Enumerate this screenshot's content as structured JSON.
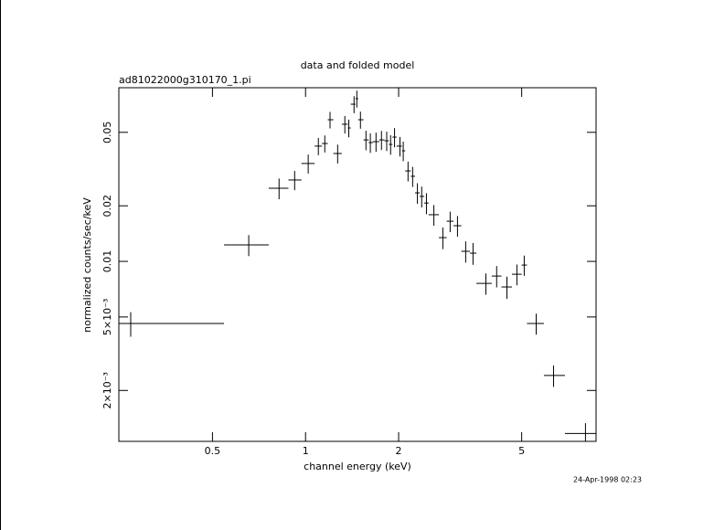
{
  "chart_data": {
    "type": "errorbar",
    "title": "data and folded model",
    "subtitle": "ad81022000g310170_1.pi",
    "x_label": "channel energy (keV)",
    "y_label": "normalized counts/sec/keV",
    "annotation": "24-Apr-1998 02:23",
    "log_x": true,
    "log_y": true,
    "color": "#000000",
    "xlim": [
      0.249,
      8.7
    ],
    "ylim": [
      0.00106,
      0.0872
    ],
    "xticks": [
      0.5,
      1,
      2,
      5
    ],
    "yticks": [
      {
        "value": 0.002,
        "label": "2×10⁻³"
      },
      {
        "value": 0.005,
        "label": "5×10⁻³"
      },
      0.01,
      0.02,
      0.05
    ],
    "x": [
      0.272,
      0.655,
      0.821,
      0.922,
      1.02,
      1.1,
      1.154,
      1.2,
      1.27,
      1.34,
      1.38,
      1.435,
      1.465,
      1.505,
      1.568,
      1.62,
      1.69,
      1.76,
      1.83,
      1.884,
      1.94,
      2.02,
      2.07,
      2.145,
      2.22,
      2.3,
      2.375,
      2.46,
      2.6,
      2.78,
      2.935,
      3.1,
      3.295,
      3.48,
      3.83,
      4.15,
      4.48,
      4.825,
      5.095,
      5.57,
      6.34,
      8.04
    ],
    "bin_edges": [
      0.249,
      0.545,
      0.76,
      0.88,
      0.97,
      1.07,
      1.13,
      1.18,
      1.23,
      1.31,
      1.37,
      1.4,
      1.45,
      1.48,
      1.54,
      1.6,
      1.65,
      1.73,
      1.8,
      1.86,
      1.91,
      1.97,
      2.05,
      2.1,
      2.19,
      2.26,
      2.34,
      2.42,
      2.5,
      2.7,
      2.86,
      3.01,
      3.19,
      3.4,
      3.57,
      4.0,
      4.3,
      4.65,
      5.0,
      5.2,
      5.9,
      6.9,
      8.7
    ],
    "values": [
      0.00461,
      0.01228,
      0.0249,
      0.0276,
      0.0339,
      0.0421,
      0.0435,
      0.0585,
      0.0384,
      0.0553,
      0.0528,
      0.071,
      0.0761,
      0.0585,
      0.0455,
      0.044,
      0.0445,
      0.0455,
      0.045,
      0.043,
      0.0471,
      0.0421,
      0.0397,
      0.0309,
      0.0289,
      0.0235,
      0.0225,
      0.0207,
      0.0179,
      0.01345,
      0.0165,
      0.0156,
      0.01134,
      0.01108,
      0.0076,
      0.00833,
      0.00727,
      0.00852,
      0.00955,
      0.00461,
      0.00241,
      0.00117
    ],
    "yerr": [
      0.0007,
      0.0016,
      0.0032,
      0.0033,
      0.004,
      0.0045,
      0.0046,
      0.006,
      0.0045,
      0.006,
      0.0058,
      0.0075,
      0.008,
      0.0062,
      0.0055,
      0.0053,
      0.0053,
      0.0054,
      0.0054,
      0.0052,
      0.0056,
      0.0051,
      0.0048,
      0.0038,
      0.0036,
      0.003,
      0.0029,
      0.0027,
      0.0023,
      0.0018,
      0.0021,
      0.002,
      0.0015,
      0.0015,
      0.001,
      0.0011,
      0.001,
      0.0011,
      0.0012,
      0.0006,
      0.00032,
      0.00016
    ]
  }
}
